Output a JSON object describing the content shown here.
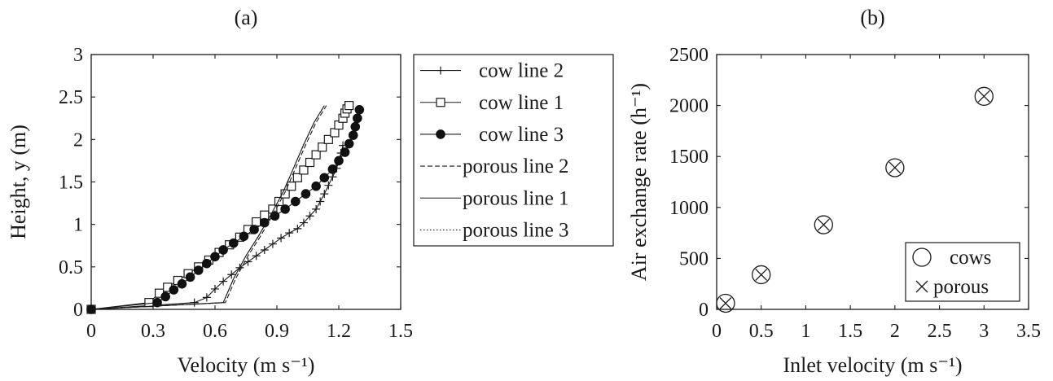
{
  "chart_data": [
    {
      "id": "a",
      "type": "line",
      "title": "(a)",
      "xlabel": "Velocity (m s⁻¹)",
      "ylabel": "Height, y (m)",
      "xlim": [
        0,
        1.5
      ],
      "ylim": [
        0,
        3
      ],
      "xticks": [
        "0",
        "0.3",
        "0.6",
        "0.9",
        "1.2",
        "1.5"
      ],
      "yticks": [
        "0",
        "0.5",
        "1",
        "1.5",
        "2",
        "2.5",
        "3"
      ],
      "legend_position": "outside-right",
      "grid": false,
      "series": [
        {
          "name": "cow line 2",
          "marker": "plus",
          "line": "solid",
          "x": [
            0,
            0.5,
            0.56,
            0.6,
            0.64,
            0.68,
            0.72,
            0.76,
            0.8,
            0.84,
            0.88,
            0.92,
            0.96,
            1.0,
            1.03,
            1.06,
            1.09,
            1.11,
            1.13,
            1.15,
            1.17,
            1.19,
            1.2,
            1.21,
            1.22
          ],
          "y": [
            0,
            0.08,
            0.14,
            0.24,
            0.33,
            0.41,
            0.49,
            0.56,
            0.63,
            0.7,
            0.77,
            0.84,
            0.9,
            0.95,
            1.02,
            1.1,
            1.18,
            1.27,
            1.36,
            1.46,
            1.56,
            1.66,
            1.75,
            1.84,
            1.93
          ]
        },
        {
          "name": "cow line 1",
          "marker": "square",
          "line": "solid",
          "x": [
            0,
            0.28,
            0.33,
            0.37,
            0.42,
            0.47,
            0.52,
            0.57,
            0.62,
            0.67,
            0.72,
            0.76,
            0.8,
            0.84,
            0.88,
            0.91,
            0.94,
            0.97,
            1.0,
            1.03,
            1.06,
            1.09,
            1.12,
            1.15,
            1.18,
            1.2,
            1.22,
            1.23,
            1.24,
            1.25
          ],
          "y": [
            0,
            0.08,
            0.19,
            0.26,
            0.34,
            0.42,
            0.5,
            0.58,
            0.67,
            0.76,
            0.85,
            0.94,
            1.03,
            1.11,
            1.18,
            1.27,
            1.36,
            1.45,
            1.55,
            1.64,
            1.73,
            1.82,
            1.91,
            2.0,
            2.08,
            2.17,
            2.25,
            2.31,
            2.36,
            2.4
          ]
        },
        {
          "name": "cow line 3",
          "marker": "circle",
          "line": "solid",
          "x": [
            0,
            0.32,
            0.36,
            0.4,
            0.44,
            0.48,
            0.52,
            0.56,
            0.6,
            0.64,
            0.69,
            0.74,
            0.79,
            0.84,
            0.89,
            0.94,
            0.99,
            1.04,
            1.09,
            1.13,
            1.17,
            1.2,
            1.23,
            1.25,
            1.27,
            1.28,
            1.29,
            1.3
          ],
          "y": [
            0,
            0.08,
            0.15,
            0.23,
            0.3,
            0.38,
            0.46,
            0.54,
            0.62,
            0.7,
            0.78,
            0.86,
            0.94,
            1.02,
            1.1,
            1.18,
            1.27,
            1.36,
            1.45,
            1.55,
            1.65,
            1.75,
            1.85,
            1.95,
            2.05,
            2.15,
            2.25,
            2.35
          ]
        },
        {
          "name": "porous line 2",
          "marker": "none",
          "line": "dashed",
          "x": [
            0,
            0.65,
            0.7,
            0.76,
            0.82,
            0.88,
            0.94,
            0.99,
            1.04,
            1.09,
            1.14
          ],
          "y": [
            0,
            0.08,
            0.36,
            0.63,
            0.86,
            1.11,
            1.38,
            1.66,
            1.94,
            2.2,
            2.4
          ]
        },
        {
          "name": "porous line 1",
          "marker": "none",
          "line": "solid",
          "x": [
            0,
            0.64,
            0.69,
            0.75,
            0.81,
            0.87,
            0.93,
            0.98,
            1.03,
            1.08,
            1.13
          ],
          "y": [
            0,
            0.08,
            0.36,
            0.63,
            0.86,
            1.11,
            1.38,
            1.66,
            1.94,
            2.2,
            2.4
          ]
        },
        {
          "name": "porous line 3",
          "marker": "none",
          "line": "dotted",
          "x": [
            0,
            0.64,
            0.69,
            0.75,
            0.81,
            0.87,
            0.93,
            0.98,
            1.03,
            1.08,
            1.13
          ],
          "y": [
            0,
            0.08,
            0.36,
            0.63,
            0.86,
            1.11,
            1.38,
            1.66,
            1.94,
            2.2,
            2.4
          ]
        }
      ]
    },
    {
      "id": "b",
      "type": "scatter",
      "title": "(b)",
      "xlabel": "Inlet velocity (m s⁻¹)",
      "ylabel": "Air exchange rate (h⁻¹)",
      "xlim": [
        0,
        3.5
      ],
      "ylim": [
        0,
        2500
      ],
      "xticks": [
        "0",
        "0.5",
        "1",
        "1.5",
        "2",
        "2.5",
        "3",
        "3.5"
      ],
      "yticks": [
        "0",
        "500",
        "1000",
        "1500",
        "2000",
        "2500"
      ],
      "legend_position": "bottom-right",
      "grid": false,
      "series": [
        {
          "name": "cows",
          "marker": "circle-open",
          "x": [
            0.1,
            0.5,
            1.2,
            2.0,
            3.0
          ],
          "y": [
            60,
            340,
            830,
            1390,
            2090
          ]
        },
        {
          "name": "porous",
          "marker": "cross",
          "x": [
            0.1,
            0.5,
            1.2,
            2.0,
            3.0
          ],
          "y": [
            60,
            340,
            830,
            1390,
            2090
          ]
        }
      ]
    }
  ]
}
